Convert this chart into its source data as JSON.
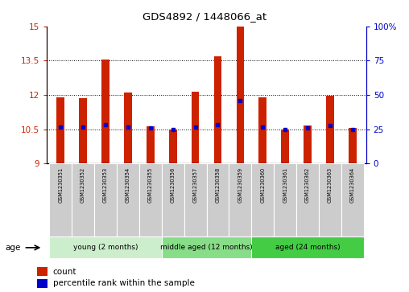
{
  "title": "GDS4892 / 1448066_at",
  "samples": [
    "GSM1230351",
    "GSM1230352",
    "GSM1230353",
    "GSM1230354",
    "GSM1230355",
    "GSM1230356",
    "GSM1230357",
    "GSM1230358",
    "GSM1230359",
    "GSM1230360",
    "GSM1230361",
    "GSM1230362",
    "GSM1230363",
    "GSM1230364"
  ],
  "count_values": [
    11.9,
    11.85,
    13.55,
    12.1,
    10.62,
    10.47,
    12.15,
    13.7,
    15.0,
    11.9,
    10.5,
    10.65,
    11.95,
    10.55
  ],
  "percentile_values": [
    10.6,
    10.6,
    10.7,
    10.6,
    10.55,
    10.5,
    10.6,
    10.7,
    11.75,
    10.6,
    10.5,
    10.55,
    10.65,
    10.5
  ],
  "ylim_left": [
    9,
    15
  ],
  "ylim_right": [
    0,
    100
  ],
  "yticks_left": [
    9,
    10.5,
    12,
    13.5,
    15
  ],
  "yticks_right": [
    0,
    25,
    50,
    75,
    100
  ],
  "ytick_labels_left": [
    "9",
    "10.5",
    "12",
    "13.5",
    "15"
  ],
  "ytick_labels_right": [
    "0",
    "25",
    "50",
    "75",
    "100%"
  ],
  "bar_color": "#cc2200",
  "dot_color": "#0000cc",
  "bar_bottom": 9,
  "groups": [
    {
      "label": "young (2 months)",
      "start": 0,
      "end": 5,
      "color": "#cceecc"
    },
    {
      "label": "middle aged (12 months)",
      "start": 5,
      "end": 9,
      "color": "#88dd88"
    },
    {
      "label": "aged (24 months)",
      "start": 9,
      "end": 14,
      "color": "#44cc44"
    }
  ],
  "age_label": "age",
  "legend_count_label": "count",
  "legend_percentile_label": "percentile rank within the sample",
  "grid_color": "black",
  "background_color": "#ffffff",
  "plot_bg_color": "#ffffff",
  "label_bg_color": "#cccccc",
  "bar_width": 0.35
}
